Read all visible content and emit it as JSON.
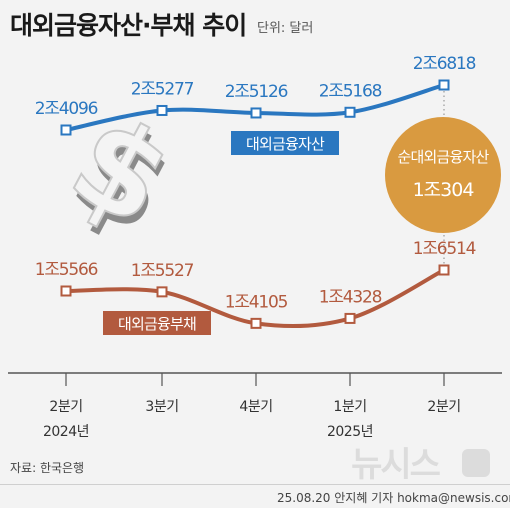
{
  "title": "대외금융자산·부채 추이",
  "unit": "단위: 달러",
  "source": "자료: 한국은행",
  "credit": "25.08.20 안지혜 기자 hokma@newsis.com",
  "watermark": "뉴시스",
  "colors": {
    "assets": "#2a77c0",
    "liabilities": "#b25a3e",
    "bubble": "#d99a40",
    "axis": "#555555"
  },
  "chart_data": {
    "type": "line",
    "categories": [
      "2분기",
      "3분기",
      "4분기",
      "1분기",
      "2분기"
    ],
    "year_labels": [
      "2024년",
      "",
      "",
      "2025년",
      ""
    ],
    "series": [
      {
        "name": "대외금융자산",
        "values": [
          24096,
          25277,
          25126,
          25168,
          26818
        ],
        "labels": [
          "2조4096",
          "2조5277",
          "2조5126",
          "2조5168",
          "2조6818"
        ],
        "color": "#2a77c0"
      },
      {
        "name": "대외금융부채",
        "values": [
          15566,
          15527,
          14105,
          14328,
          16514
        ],
        "labels": [
          "1조5566",
          "1조5527",
          "1조4105",
          "1조4328",
          "1조6514"
        ],
        "color": "#b25a3e"
      }
    ],
    "value_unit": "억 달러",
    "annotation": {
      "label": "순대외금융자산",
      "value_text": "1조304",
      "value": 10304
    }
  }
}
